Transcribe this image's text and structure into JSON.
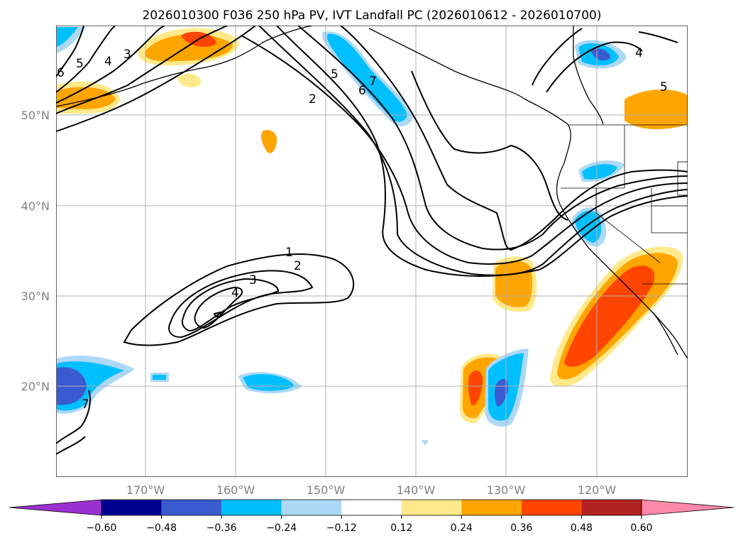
{
  "title": "2026010300 F036 250 hPa PV, IVT Landfall PC (2026010612 - 2026010700)",
  "map": {
    "lon_ticks": [
      "170°W",
      "160°W",
      "150°W",
      "140°W",
      "130°W",
      "120°W"
    ],
    "lat_ticks": [
      "50°N",
      "40°N",
      "30°N",
      "20°N"
    ],
    "contour_labels": [
      "1",
      "2",
      "3",
      "4",
      "2",
      "5",
      "6",
      "7",
      "3",
      "4",
      "4",
      "5",
      "5",
      "6",
      "7"
    ]
  },
  "colorbar": {
    "ticks": [
      "−0.60",
      "−0.48",
      "−0.36",
      "−0.24",
      "−0.12",
      "0.12",
      "0.24",
      "0.36",
      "0.48",
      "0.60"
    ],
    "colors": [
      "#9b30d0",
      "#000090",
      "#3a5bd0",
      "#00bfff",
      "#add8f6",
      "#ffffff",
      "#ffe98a",
      "#ffa500",
      "#ff4500",
      "#b22222",
      "#ff88aa"
    ]
  }
}
